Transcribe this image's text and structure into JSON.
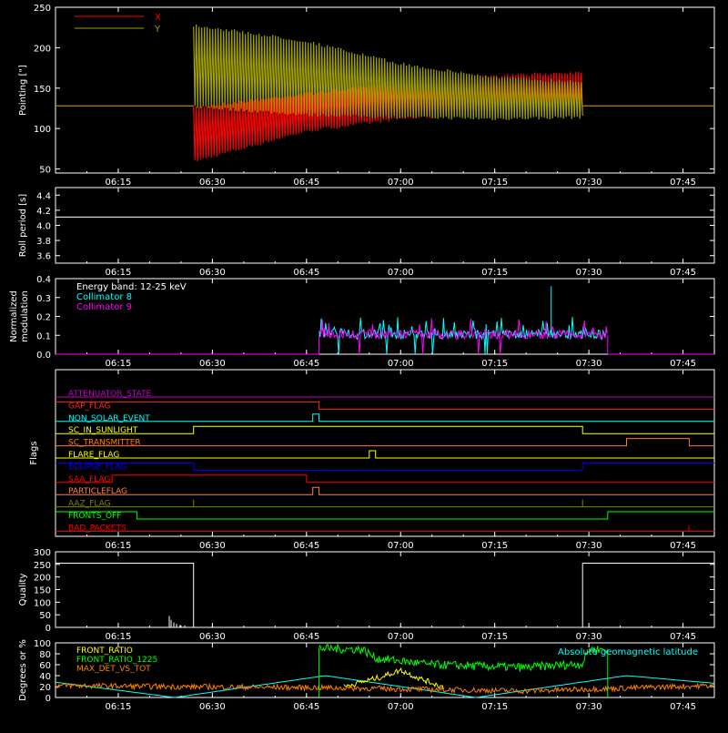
{
  "colors": {
    "background": "#000000",
    "axis": "#ffffff",
    "x_red": "#ff0000",
    "y_olive": "#a0a000",
    "cyan": "#00ffff",
    "magenta": "#ff00ff",
    "white": "#ffffff",
    "yellow": "#ffff00",
    "green": "#00ff00",
    "orange": "#ff8000",
    "blue": "#0000ff",
    "purple": "#c000c0",
    "olive_dark": "#808000",
    "brown": "#d07030",
    "red_orange": "#ff4000",
    "violet": "#b000ff"
  },
  "time_axis": {
    "start": "06:05",
    "end": "07:50",
    "ticks": [
      "06:15",
      "06:30",
      "06:45",
      "07:00",
      "07:15",
      "07:30",
      "07:45"
    ]
  },
  "chart_data": [
    {
      "id": "pointing",
      "type": "line",
      "ylabel": "Pointing [\"]",
      "ylim": [
        45,
        250
      ],
      "yticks": [
        50,
        100,
        150,
        200,
        250
      ],
      "grid": false,
      "legend": {
        "placement": "top-left",
        "entries": [
          {
            "label": "X",
            "color": "#ff0000"
          },
          {
            "label": "Y",
            "color": "#a0a000"
          }
        ]
      },
      "series": [
        {
          "name": "X",
          "color": "#ff0000",
          "baseline": 128,
          "active_start": "06:27",
          "active_end": "07:29",
          "envelope": [
            {
              "t": "06:27",
              "low": 57,
              "high": 128
            },
            {
              "t": "06:45",
              "low": 95,
              "high": 145
            },
            {
              "t": "07:00",
              "low": 110,
              "high": 158
            },
            {
              "t": "07:15",
              "low": 118,
              "high": 167
            },
            {
              "t": "07:29",
              "low": 120,
              "high": 172
            }
          ]
        },
        {
          "name": "Y",
          "color": "#a0a000",
          "baseline": 128,
          "active_start": "06:27",
          "active_end": "07:29",
          "envelope": [
            {
              "t": "06:27",
              "low": 125,
              "high": 230
            },
            {
              "t": "06:45",
              "low": 115,
              "high": 210
            },
            {
              "t": "07:00",
              "low": 112,
              "high": 182
            },
            {
              "t": "07:15",
              "low": 110,
              "high": 165
            },
            {
              "t": "07:29",
              "low": 112,
              "high": 160
            }
          ]
        }
      ]
    },
    {
      "id": "roll_period",
      "type": "line",
      "ylabel": "Roll period [s]",
      "ylim": [
        3.5,
        4.5
      ],
      "yticks": [
        "3.6",
        "3.8",
        "4.0",
        "4.2",
        "4.4"
      ],
      "grid": false,
      "series": [
        {
          "color": "#ffffff",
          "value": 4.11
        }
      ]
    },
    {
      "id": "modulation",
      "type": "line",
      "ylabel": "Normalized modulation",
      "ylim": [
        0.0,
        0.4
      ],
      "yticks": [
        "0.0",
        "0.1",
        "0.2",
        "0.3",
        "0.4"
      ],
      "grid": false,
      "legend": {
        "placement": "top-left",
        "entries": [
          {
            "label": "Energy band: 12-25 keV",
            "color": "#ffffff"
          },
          {
            "label": "Collimator 8",
            "color": "#00ffff"
          },
          {
            "label": "Collimator 9",
            "color": "#ff00ff"
          }
        ]
      },
      "active_start": "06:47",
      "active_end": "07:33",
      "typical_level": 0.1,
      "peak": {
        "t": "07:24",
        "value": 0.36
      },
      "series": [
        {
          "name": "Collimator 8",
          "color": "#00ffff"
        },
        {
          "name": "Collimator 9",
          "color": "#ff00ff"
        }
      ]
    },
    {
      "id": "flags",
      "type": "line",
      "ylabel": "Flags",
      "flags": [
        {
          "label": "ATTENUATOR_STATE",
          "color": "#c000c0",
          "segments": [
            [
              "06:05",
              "07:50",
              0
            ]
          ]
        },
        {
          "label": "GAP_FLAG",
          "color": "#ff2020",
          "segments": [
            [
              "06:05",
              "06:47",
              1
            ],
            [
              "06:47",
              "07:50",
              0
            ]
          ]
        },
        {
          "label": "NON_SOLAR_EVENT",
          "color": "#00ffff",
          "segments": [
            [
              "06:05",
              "06:46",
              0
            ],
            [
              "06:46",
              "06:47",
              1
            ],
            [
              "06:47",
              "07:50",
              0
            ]
          ]
        },
        {
          "label": "SC_IN_SUNLIGHT",
          "color": "#ffff00",
          "segments": [
            [
              "06:05",
              "06:27",
              0
            ],
            [
              "06:27",
              "07:29",
              1
            ],
            [
              "07:29",
              "07:50",
              0
            ]
          ]
        },
        {
          "label": "SC_TRANSMITTER",
          "color": "#ff8000",
          "segments": [
            [
              "06:05",
              "07:36",
              0
            ],
            [
              "07:36",
              "07:46",
              1
            ],
            [
              "07:46",
              "07:50",
              0
            ]
          ]
        },
        {
          "label": "FLARE_FLAG",
          "color": "#ffff00",
          "segments": [
            [
              "06:05",
              "06:55",
              0
            ],
            [
              "06:55",
              "06:56",
              1
            ],
            [
              "06:56",
              "07:50",
              0
            ]
          ]
        },
        {
          "label": "ECLIPSE_FLAG",
          "color": "#0000ff",
          "segments": [
            [
              "06:05",
              "06:27",
              1
            ],
            [
              "06:27",
              "07:29",
              0
            ],
            [
              "07:29",
              "07:50",
              1
            ]
          ]
        },
        {
          "label": "SAA_FLAG",
          "color": "#ff0000",
          "segments": [
            [
              "06:05",
              "06:14",
              0
            ],
            [
              "06:14",
              "06:45",
              1
            ],
            [
              "06:45",
              "07:50",
              0
            ]
          ]
        },
        {
          "label": "PARTICLEFLAG",
          "color": "#ff8040",
          "segments": [
            [
              "06:05",
              "06:46",
              0
            ],
            [
              "06:46",
              "06:47",
              1
            ],
            [
              "06:47",
              "07:50",
              0
            ]
          ]
        },
        {
          "label": "AAZ_FLAG",
          "color": "#808000",
          "segments": [
            [
              "06:05",
              "06:27",
              0
            ],
            [
              "06:27",
              "06:27",
              1
            ],
            [
              "06:27",
              "07:29",
              0
            ],
            [
              "07:29",
              "07:29",
              1
            ],
            [
              "07:29",
              "07:50",
              0
            ]
          ]
        },
        {
          "label": "FRONTS_OFF",
          "color": "#00ff00",
          "segments": [
            [
              "06:05",
              "06:18",
              1
            ],
            [
              "06:18",
              "07:33",
              0
            ],
            [
              "07:33",
              "07:50",
              1
            ]
          ]
        },
        {
          "label": "BAD_PACKETS",
          "color": "#ff0000",
          "segments": [
            [
              "06:05",
              "07:50",
              0
            ]
          ]
        }
      ]
    },
    {
      "id": "quality",
      "type": "line",
      "ylabel": "Quality",
      "ylim": [
        0,
        300
      ],
      "yticks": [
        "0",
        "50",
        "100",
        "150",
        "200",
        "250",
        "300"
      ],
      "grid": false,
      "series": [
        {
          "color": "#ffffff",
          "points": [
            [
              "06:05",
              255
            ],
            [
              "06:27",
              255
            ],
            [
              "06:27",
              0
            ],
            [
              "07:29",
              0
            ],
            [
              "07:29",
              255
            ],
            [
              "07:50",
              255
            ]
          ]
        }
      ]
    },
    {
      "id": "ratios",
      "type": "line",
      "ylabel": "Degrees or %",
      "ylim": [
        0,
        100
      ],
      "yticks": [
        "0",
        "20",
        "40",
        "60",
        "80",
        "100"
      ],
      "grid": false,
      "legend": {
        "placement": "top-left",
        "entries": [
          {
            "label": "FRONT_RATIO",
            "color": "#ffff00"
          },
          {
            "label": "FRONT_RATIO_1225",
            "color": "#00ff00"
          },
          {
            "label": "MAX_DET_VS_TOT",
            "color": "#ff8000"
          }
        ]
      },
      "annotation": {
        "label": "Absolute geomagnetic latitude",
        "color": "#00ffff",
        "placement": "top-right"
      },
      "series": [
        {
          "name": "Absolute geomagnetic latitude",
          "color": "#00ffff",
          "points": [
            [
              "06:05",
              28
            ],
            [
              "06:24",
              0
            ],
            [
              "06:48",
              40
            ],
            [
              "07:12",
              0
            ],
            [
              "07:36",
              40
            ],
            [
              "07:50",
              26
            ]
          ]
        },
        {
          "name": "FRONT_RATIO_1225",
          "color": "#00ff00",
          "active_start": "06:47",
          "active_end": "07:33",
          "points": [
            [
              "06:47",
              90
            ],
            [
              "06:54",
              88
            ],
            [
              "06:56",
              72
            ],
            [
              "07:05",
              60
            ],
            [
              "07:20",
              55
            ],
            [
              "07:29",
              62
            ],
            [
              "07:30",
              88
            ],
            [
              "07:33",
              88
            ]
          ]
        },
        {
          "name": "FRONT_RATIO",
          "color": "#ffff00",
          "active_start": "06:51",
          "active_end": "07:07",
          "points": [
            [
              "06:51",
              20
            ],
            [
              "06:57",
              38
            ],
            [
              "07:00",
              50
            ],
            [
              "07:03",
              35
            ],
            [
              "07:07",
              18
            ]
          ]
        },
        {
          "name": "MAX_DET_VS_TOT",
          "color": "#ff8000",
          "points": [
            [
              "06:05",
              22
            ],
            [
              "06:22",
              20
            ],
            [
              "06:47",
              18
            ],
            [
              "07:20",
              12
            ],
            [
              "07:50",
              22
            ]
          ]
        }
      ]
    }
  ]
}
